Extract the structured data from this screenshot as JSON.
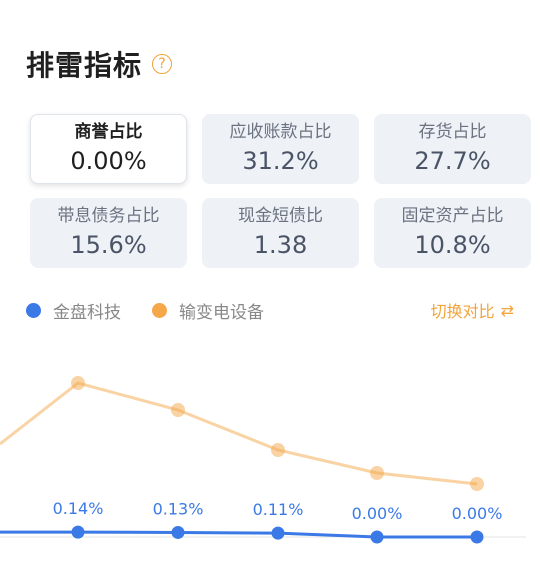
{
  "header": {
    "title": "排雷指标",
    "help_icon": "?"
  },
  "metrics": [
    {
      "label": "商誉占比",
      "value": "0.00%",
      "active": true
    },
    {
      "label": "应收账款占比",
      "value": "31.2%"
    },
    {
      "label": "存货占比",
      "value": "27.7%"
    },
    {
      "label": "带息债务占比",
      "value": "15.6%"
    },
    {
      "label": "现金短债比",
      "value": "1.38"
    },
    {
      "label": "固定资产占比",
      "value": "10.8%"
    }
  ],
  "legend": {
    "company": {
      "name": "金盘科技",
      "color": "#3b7ae6"
    },
    "industry": {
      "name": "输变电设备",
      "color": "#f4a84a"
    },
    "switch_label": "切换对比",
    "switch_icon": "switch-icon"
  },
  "chart_data": {
    "type": "line",
    "series": [
      {
        "name": "金盘科技",
        "values": [
          0.14,
          0.13,
          0.11,
          0.0,
          0.0
        ],
        "labels": [
          "0.14%",
          "0.13%",
          "0.11%",
          "0.00%",
          "0.00%"
        ]
      },
      {
        "name": "输变电设备",
        "values": [
          null,
          null,
          null,
          null,
          null
        ]
      }
    ]
  }
}
